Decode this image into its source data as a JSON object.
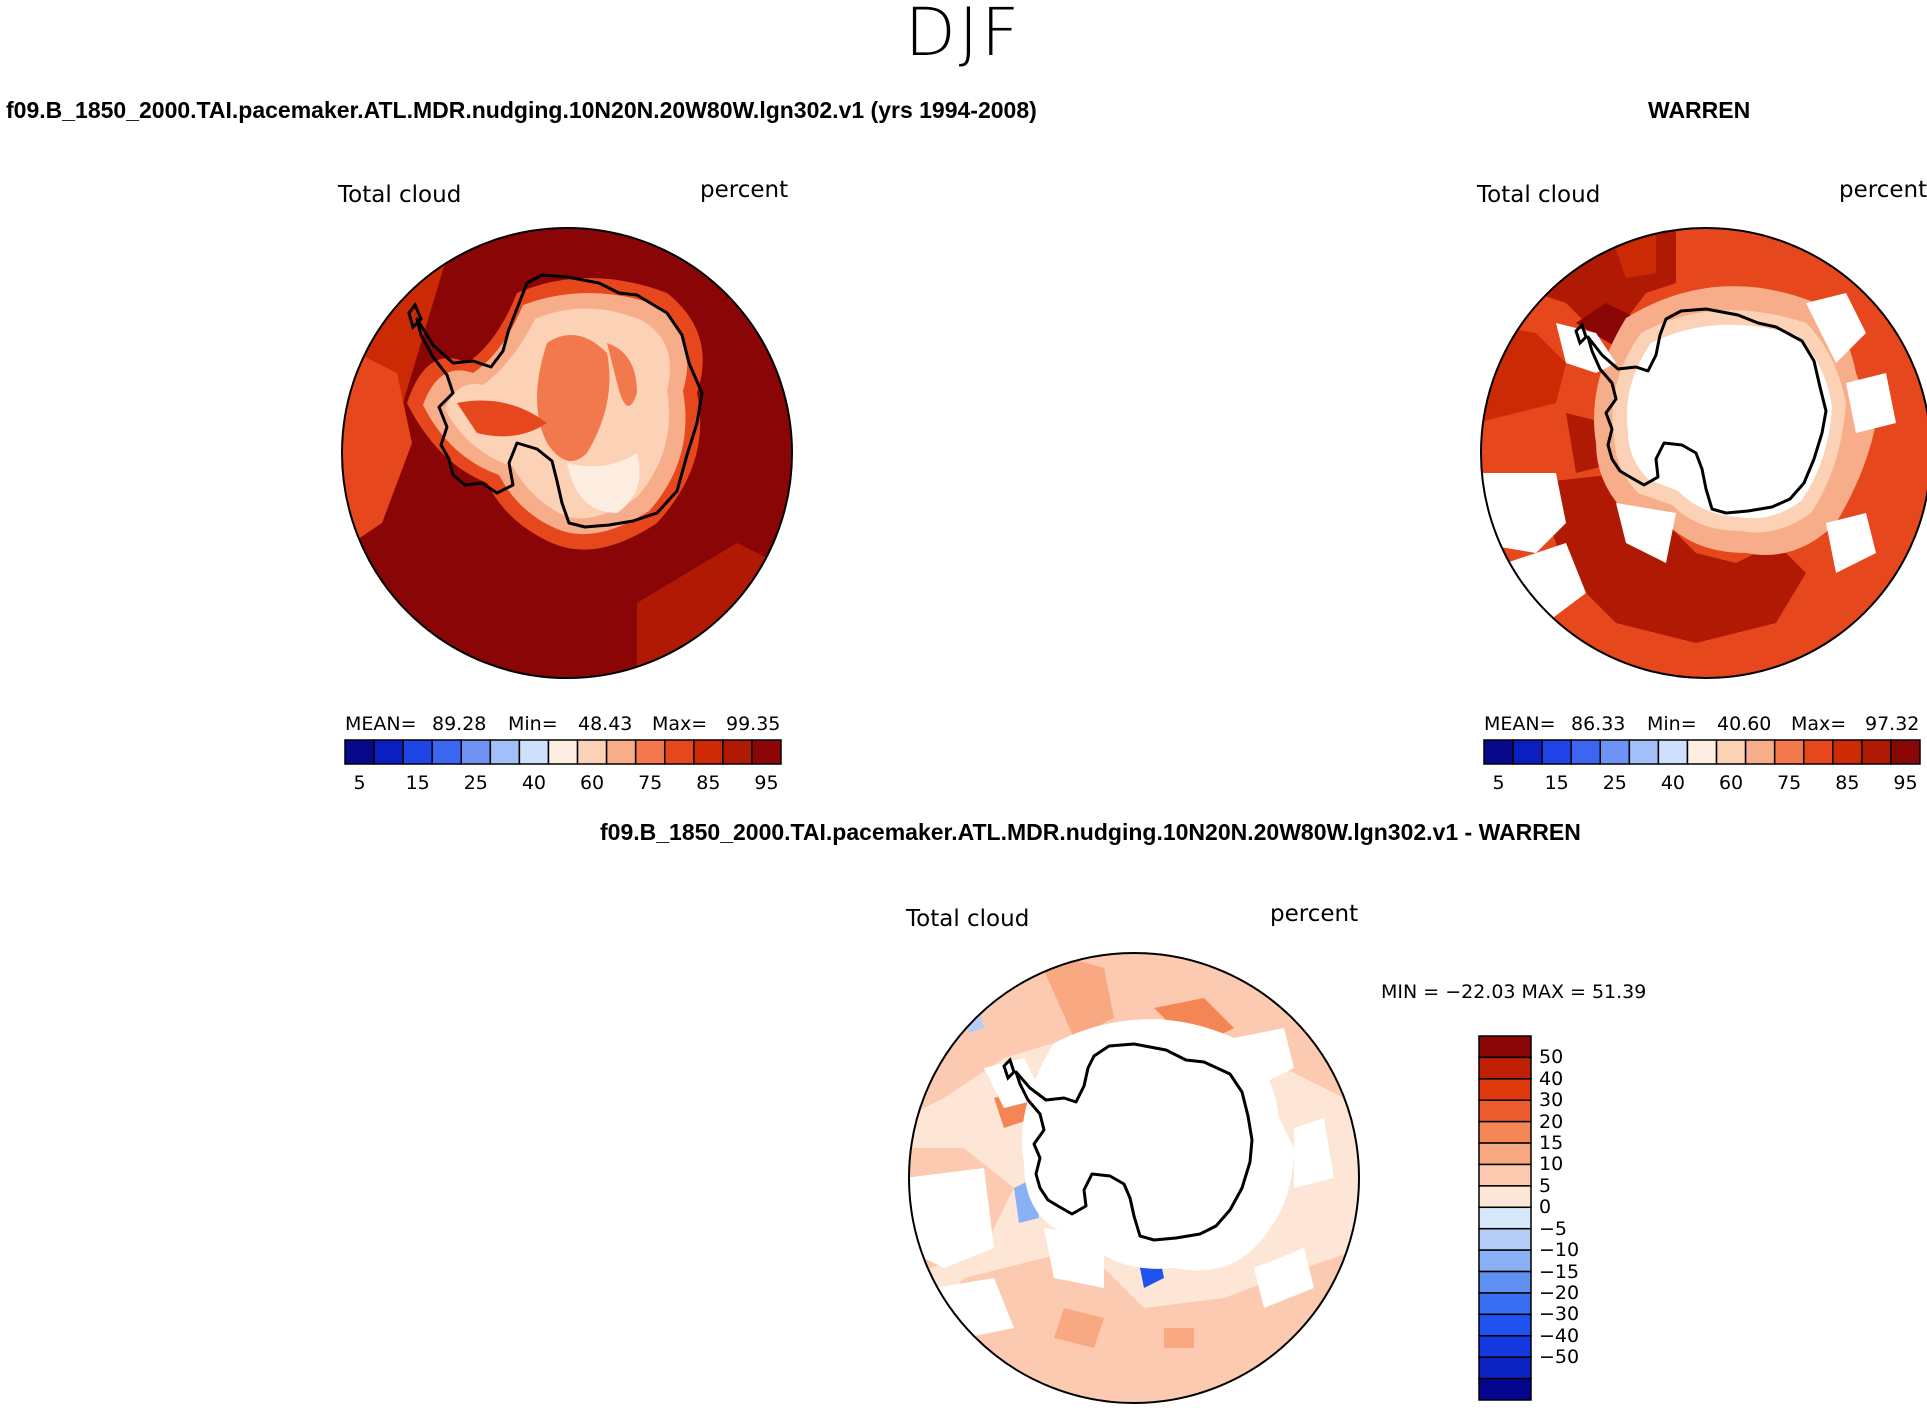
{
  "season": "DJF",
  "panels": {
    "model": {
      "title": "f09.B_1850_2000.TAI.pacemaker.ATL.MDR.nudging.10N20N.20W80W.lgn302.v1 (yrs 1994-2008)",
      "variable": "Total cloud",
      "units": "percent",
      "stats": {
        "mean_label": "MEAN=",
        "mean": "89.28",
        "min_label": "Min=",
        "min": "48.43",
        "max_label": "Max=",
        "max": "99.35"
      }
    },
    "obs": {
      "title": "WARREN",
      "variable": "Total cloud",
      "units": "percent",
      "stats": {
        "mean_label": "MEAN=",
        "mean": "86.33",
        "min_label": "Min=",
        "min": "40.60",
        "max_label": "Max=",
        "max": "97.32"
      }
    },
    "diff": {
      "title": "f09.B_1850_2000.TAI.pacemaker.ATL.MDR.nudging.10N20N.20W80W.lgn302.v1 - WARREN",
      "variable": "Total cloud",
      "units": "percent",
      "minmax": "MIN = −22.03 MAX =  51.39"
    }
  },
  "colorbar_abs": {
    "colors": [
      "#08088c",
      "#0a1fbf",
      "#1f45e6",
      "#3a66f2",
      "#6e93f5",
      "#a3bff7",
      "#cfe0fa",
      "#fdeee1",
      "#fcd2b6",
      "#f7ad8a",
      "#f2794d",
      "#e6471c",
      "#cc2a05",
      "#b01a05",
      "#8a0606"
    ],
    "tick_labels": [
      "5",
      "15",
      "25",
      "40",
      "60",
      "75",
      "85",
      "95"
    ]
  },
  "colorbar_diff": {
    "colors": [
      "#05058f",
      "#0a22bf",
      "#1438e0",
      "#1f52ee",
      "#3a6ef2",
      "#6090f2",
      "#8ab0f5",
      "#b5cdf7",
      "#d9e7fa",
      "#fde6d5",
      "#fccab0",
      "#f9a982",
      "#f48656",
      "#ed5c2e",
      "#de3a0e",
      "#c02006",
      "#8a0606"
    ],
    "tick_labels": [
      "50",
      "40",
      "30",
      "20",
      "15",
      "10",
      "5",
      "0",
      "−5",
      "−10",
      "−15",
      "−20",
      "−30",
      "−40",
      "−50"
    ]
  }
}
